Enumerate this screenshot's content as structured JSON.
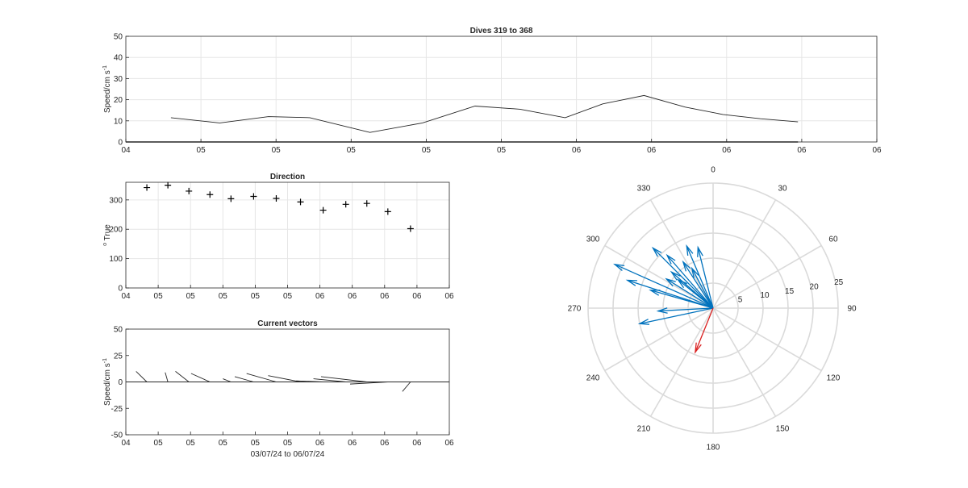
{
  "chart_data": [
    {
      "type": "line",
      "title": "Dives 319 to 368",
      "ylabel": "Speed/cm s",
      "ylabel_exp": "-1",
      "ylim": [
        0,
        50
      ],
      "y_ticks": [
        "0",
        "10",
        "20",
        "30",
        "40",
        "50"
      ],
      "x_ticks": [
        "04",
        "05",
        "05",
        "05",
        "05",
        "05",
        "06",
        "06",
        "06",
        "06",
        "06"
      ],
      "grid": true,
      "x": [
        0.6,
        1.25,
        1.9,
        2.45,
        3.25,
        3.95,
        4.65,
        5.25,
        5.85,
        6.35,
        6.9,
        7.45,
        7.95,
        8.45,
        8.95
      ],
      "values": [
        11.5,
        9,
        12,
        11.5,
        4.5,
        9,
        17,
        15.5,
        11.5,
        18,
        22,
        16.5,
        13,
        11,
        9.5
      ]
    },
    {
      "type": "scatter",
      "title": "Direction",
      "ylabel": "o True",
      "ylim": [
        0,
        360
      ],
      "y_ticks": [
        "0",
        "100",
        "200",
        "300"
      ],
      "x_ticks": [
        "04",
        "05",
        "05",
        "05",
        "05",
        "05",
        "06",
        "06",
        "06",
        "06",
        "06"
      ],
      "grid": true,
      "x": [
        0.65,
        1.3,
        1.95,
        2.6,
        3.25,
        3.95,
        4.65,
        5.4,
        6.1,
        6.8,
        7.45,
        8.1,
        8.8
      ],
      "values": [
        342,
        350,
        330,
        318,
        304,
        312,
        305,
        293,
        265,
        285,
        288,
        260,
        202
      ]
    },
    {
      "type": "line",
      "title": "Current vectors",
      "ylabel": "Speed/cm s",
      "ylabel_exp": "-1",
      "xlabel": "03/07/24 to 06/07/24",
      "ylim": [
        -50,
        50
      ],
      "y_ticks": [
        "-50",
        "-25",
        "0",
        "25",
        "50"
      ],
      "x_ticks": [
        "04",
        "05",
        "05",
        "05",
        "05",
        "05",
        "06",
        "06",
        "06",
        "06",
        "06"
      ],
      "grid": false,
      "vectors": [
        {
          "x": 0.65,
          "u": -4,
          "v": 10
        },
        {
          "x": 1.3,
          "u": -1,
          "v": 9
        },
        {
          "x": 1.95,
          "u": -5,
          "v": 10
        },
        {
          "x": 2.6,
          "u": -7,
          "v": 8
        },
        {
          "x": 3.25,
          "u": -3,
          "v": 3
        },
        {
          "x": 3.95,
          "u": -7,
          "v": 5
        },
        {
          "x": 4.65,
          "u": -11,
          "v": 8
        },
        {
          "x": 5.4,
          "u": -12,
          "v": 6
        },
        {
          "x": 6.1,
          "u": -10,
          "v": 1
        },
        {
          "x": 6.8,
          "u": -12,
          "v": 3
        },
        {
          "x": 7.45,
          "u": -17,
          "v": 5
        },
        {
          "x": 8.1,
          "u": -14,
          "v": -2
        },
        {
          "x": 8.8,
          "u": -3,
          "v": -9
        }
      ]
    },
    {
      "type": "polar",
      "theta_labels": [
        "0",
        "30",
        "60",
        "90",
        "120",
        "150",
        "180",
        "210",
        "240",
        "270",
        "300",
        "330"
      ],
      "r_labels": [
        "5",
        "10",
        "15",
        "20",
        "25"
      ],
      "rlim": [
        0,
        25
      ],
      "series": [
        {
          "color": "#0072bd",
          "vectors": [
            {
              "dir": 346,
              "speed": 12.5
            },
            {
              "dir": 337,
              "speed": 13.5
            },
            {
              "dir": 332,
              "speed": 9
            },
            {
              "dir": 327,
              "speed": 11
            },
            {
              "dir": 319,
              "speed": 14
            },
            {
              "dir": 315,
              "speed": 17
            },
            {
              "dir": 311,
              "speed": 11
            },
            {
              "dir": 309,
              "speed": 9
            },
            {
              "dir": 302,
              "speed": 11
            },
            {
              "dir": 294,
              "speed": 21.5
            },
            {
              "dir": 288,
              "speed": 18
            },
            {
              "dir": 286,
              "speed": 13
            },
            {
              "dir": 267,
              "speed": 11
            },
            {
              "dir": 258,
              "speed": 15
            }
          ]
        },
        {
          "color": "#d92020",
          "vectors": [
            {
              "dir": 202,
              "speed": 9.5
            }
          ]
        }
      ]
    }
  ]
}
